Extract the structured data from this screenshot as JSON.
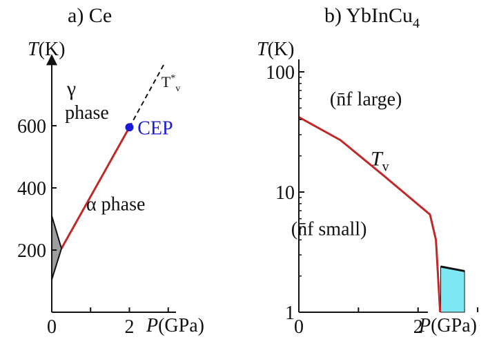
{
  "chart_data": [
    {
      "type": "line",
      "title": "a) Ce",
      "xlabel": "P(GPa)",
      "ylabel": "T(K)",
      "x_ticks": [
        "0",
        "2"
      ],
      "y_ticks": [
        "200",
        "400",
        "600"
      ],
      "xlim": [
        0,
        3.2
      ],
      "ylim": [
        0,
        800
      ],
      "grid": false,
      "annotations": [
        {
          "text": "γ",
          "x": 1.1,
          "y": 720
        },
        {
          "text": "phase",
          "x": 1.05,
          "y": 645
        },
        {
          "text": "T*v",
          "x": 3.0,
          "y": 760
        },
        {
          "text": "CEP",
          "x": 2.35,
          "y": 595
        },
        {
          "text": "α phase",
          "x": 1.6,
          "y": 350
        }
      ],
      "series": [
        {
          "values": [
            [
              0.25,
              205
            ],
            [
              2.0,
              595
            ]
          ],
          "color": "#c0282a",
          "style": "solid"
        },
        {
          "values": [
            [
              2.0,
              595
            ],
            [
              2.9,
              800
            ]
          ],
          "color": "#111111",
          "style": "dashed"
        },
        {
          "values": [
            [
              0.0,
              310
            ],
            [
              0.25,
              205
            ]
          ],
          "color": "#111111",
          "style": "solid"
        },
        {
          "values": [
            [
              0.0,
              105
            ],
            [
              0.25,
              205
            ]
          ],
          "color": "#111111",
          "style": "solid"
        }
      ],
      "points": [
        {
          "x": 2.0,
          "y": 595,
          "label": "CEP",
          "color": "#1a1ad6"
        }
      ],
      "shaded": [
        {
          "polygon": [
            [
              0.0,
              310
            ],
            [
              0.25,
              205
            ],
            [
              0.0,
              105
            ]
          ],
          "color": "#9e9e9e"
        }
      ]
    },
    {
      "type": "line",
      "title": "b) YbInCu4",
      "xlabel": "P(GPa)",
      "ylabel": "T(K)",
      "y_scale": "log",
      "x_ticks": [
        "0",
        "2"
      ],
      "y_ticks": [
        "1",
        "10",
        "100"
      ],
      "xlim": [
        0,
        3.3
      ],
      "ylim": [
        1,
        100
      ],
      "grid": false,
      "annotations": [
        {
          "text": "(n̄f large)",
          "x": 1.4,
          "y": 60
        },
        {
          "text": "Tv",
          "x": 1.25,
          "y": 19
        },
        {
          "text": "(n̄f small)",
          "x": 0.75,
          "y": 5
        }
      ],
      "series": [
        {
          "name": "Tv",
          "values": [
            [
              0,
              42
            ],
            [
              0.7,
              27
            ],
            [
              1.4,
              14
            ],
            [
              2.2,
              6.5
            ],
            [
              2.3,
              4.0
            ],
            [
              2.37,
              1.0
            ]
          ],
          "color": "#c0282a"
        },
        {
          "values": [
            [
              2.38,
              2.4
            ],
            [
              2.78,
              2.2
            ]
          ],
          "color": "#111111"
        }
      ],
      "shaded": [
        {
          "polygon": [
            [
              2.38,
              1.0
            ],
            [
              2.38,
              2.4
            ],
            [
              2.78,
              2.2
            ],
            [
              2.78,
              1.0
            ]
          ],
          "color": "#7fe8f4"
        }
      ]
    }
  ]
}
